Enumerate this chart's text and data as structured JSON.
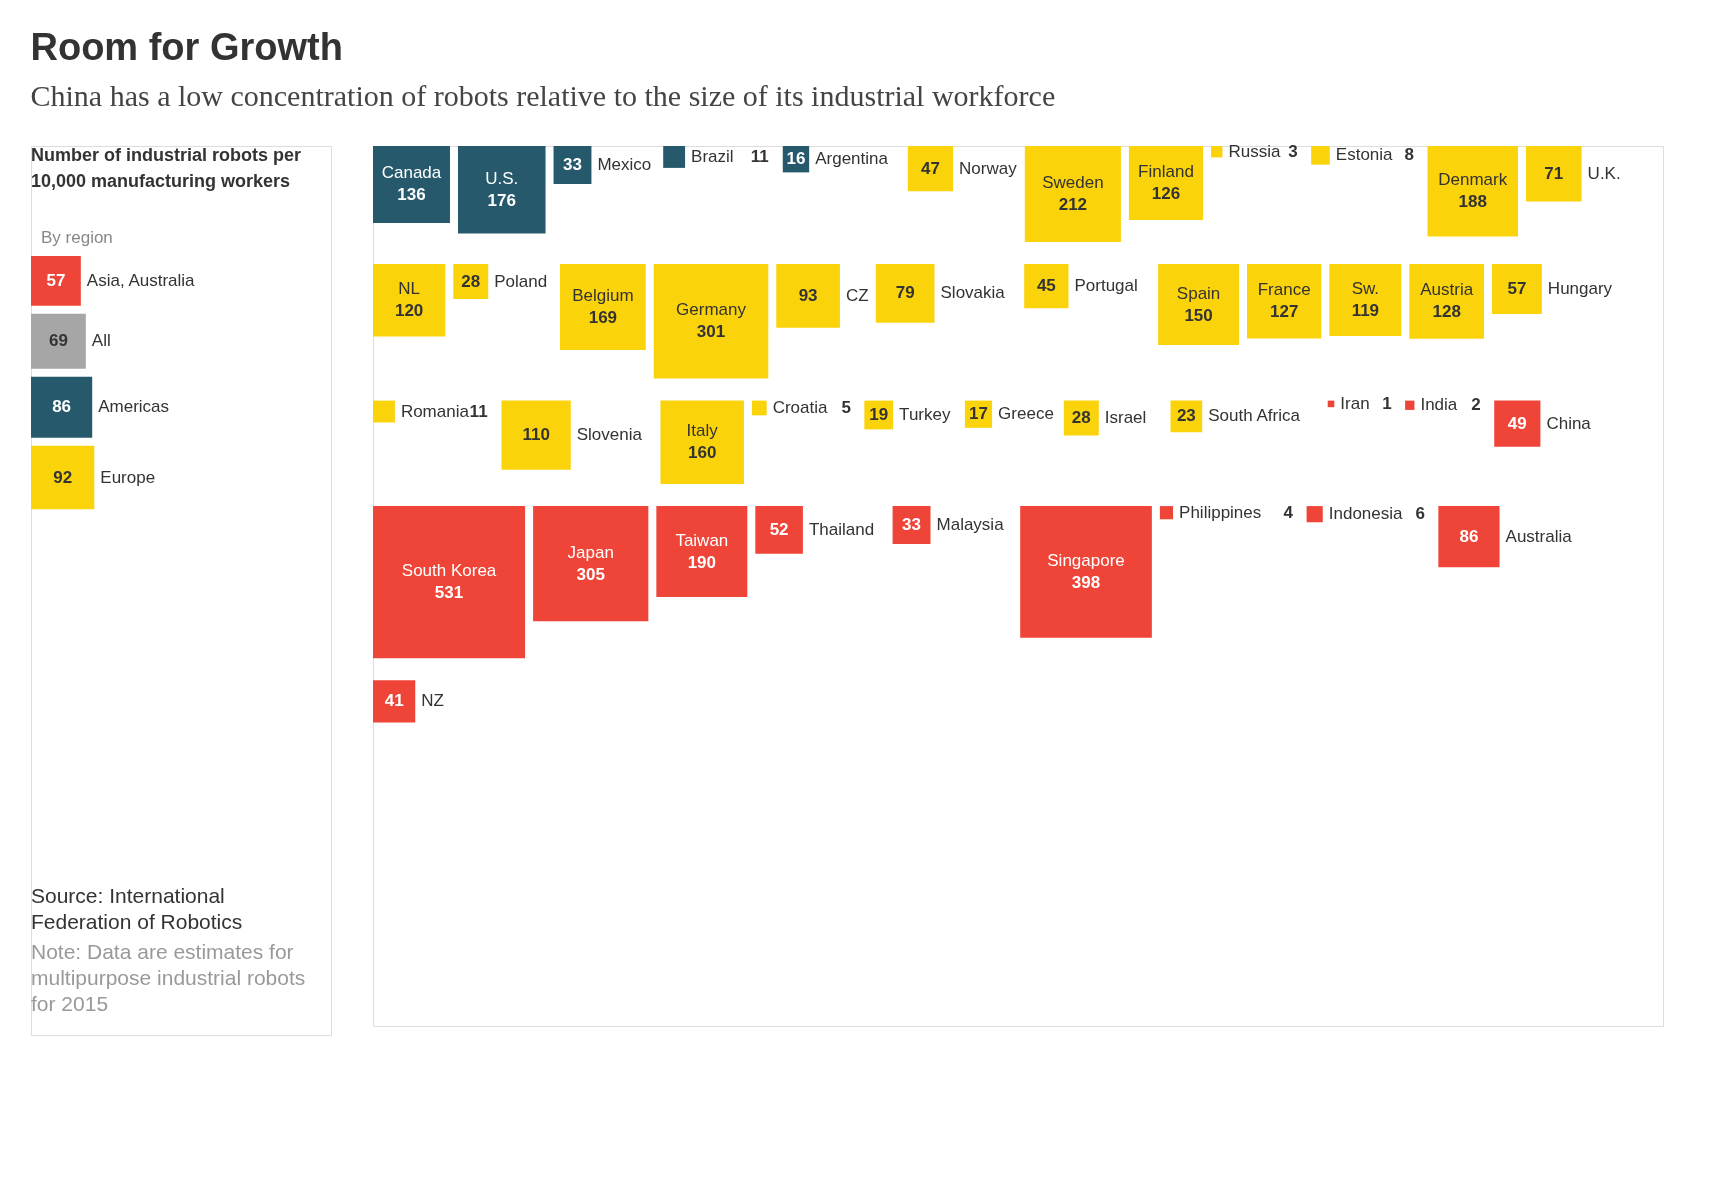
{
  "chart_data": [
    {
      "type": "other",
      "title": "Room for Growth",
      "subtitle": "China has a low concentration of robots relative to the size of its industrial workforce",
      "annotations": [
        "Number of industrial robots per 10,000 manufacturing workers",
        "Source: International Federation of Robotics",
        "Note: Data are estimates for multipurpose industrial robots for 2015"
      ],
      "legend_title": "By region",
      "data_labels": true,
      "categories": [
        "Asia, Australia",
        "All",
        "Americas",
        "Europe"
      ],
      "values": [
        57,
        69,
        86,
        92
      ],
      "colors": [
        "#ef4438",
        "#a6a6a6",
        "#25596b",
        "#fbd30b"
      ]
    },
    {
      "type": "other",
      "data_labels": true,
      "categories": [
        "Canada",
        "U.S.",
        "Mexico",
        "Brazil",
        "Argentina",
        "Norway",
        "Sweden",
        "Finland",
        "Russia",
        "Estonia",
        "Denmark",
        "U.K.",
        "NL",
        "Poland",
        "Belgium",
        "Germany",
        "CZ",
        "Slovakia",
        "Portugal",
        "Spain",
        "France",
        "Sw.",
        "Austria",
        "Hungary",
        "Romania",
        "Slovenia",
        "Italy",
        "Croatia",
        "Turkey",
        "Greece",
        "Israel",
        "South Africa",
        "Iran",
        "India",
        "China",
        "South Korea",
        "Japan",
        "Taiwan",
        "Thailand",
        "Malaysia",
        "Singapore",
        "Philippines",
        "Indonesia",
        "Australia",
        "NZ"
      ],
      "values": [
        136,
        176,
        33,
        11,
        16,
        47,
        212,
        126,
        3,
        8,
        188,
        71,
        120,
        28,
        169,
        301,
        93,
        79,
        45,
        150,
        127,
        119,
        128,
        57,
        11,
        110,
        160,
        5,
        19,
        17,
        28,
        23,
        1,
        2,
        49,
        531,
        305,
        190,
        52,
        33,
        398,
        4,
        6,
        86,
        41
      ],
      "colors": [
        "#25596b",
        "#25596b",
        "#25596b",
        "#25596b",
        "#25596b",
        "#fbd30b",
        "#fbd30b",
        "#fbd30b",
        "#fbd30b",
        "#fbd30b",
        "#fbd30b",
        "#fbd30b",
        "#fbd30b",
        "#fbd30b",
        "#fbd30b",
        "#fbd30b",
        "#fbd30b",
        "#fbd30b",
        "#fbd30b",
        "#fbd30b",
        "#fbd30b",
        "#fbd30b",
        "#fbd30b",
        "#fbd30b",
        "#fbd30b",
        "#fbd30b",
        "#fbd30b",
        "#fbd30b",
        "#fbd30b",
        "#fbd30b",
        "#fbd30b",
        "#fbd30b",
        "#ef4438",
        "#ef4438",
        "#ef4438",
        "#ef4438",
        "#ef4438",
        "#ef4438",
        "#ef4438",
        "#ef4438",
        "#ef4438",
        "#ef4438",
        "#ef4438",
        "#ef4438",
        "#ef4438"
      ]
    }
  ]
}
